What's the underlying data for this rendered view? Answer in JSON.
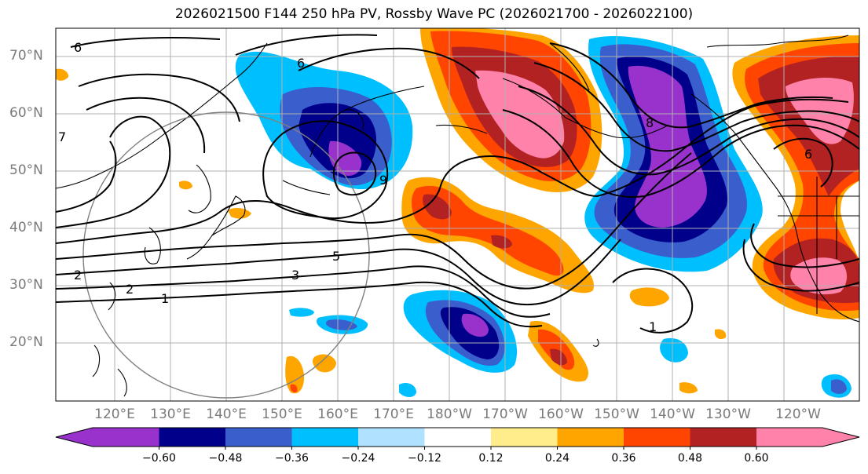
{
  "title": "2026021500 F144 250 hPa PV, Rossby Wave PC (2026021700 - 2026022100)",
  "map": {
    "lat_labels": [
      "70°N",
      "60°N",
      "50°N",
      "40°N",
      "30°N",
      "20°N"
    ],
    "lon_labels": [
      "120°E",
      "130°E",
      "140°E",
      "150°E",
      "160°E",
      "170°E",
      "180°W",
      "170°W",
      "160°W",
      "150°W",
      "140°W",
      "130°W",
      "120°W"
    ],
    "contour_labels": [
      "6",
      "6",
      "7",
      "9",
      "5",
      "3",
      "2",
      "2",
      "1",
      "8",
      "1",
      "6"
    ]
  },
  "colorbar": {
    "tick_labels": [
      "−0.60",
      "−0.48",
      "−0.36",
      "−0.24",
      "−0.12",
      "0.12",
      "0.24",
      "0.36",
      "0.48",
      "0.60"
    ],
    "colors": [
      "#9932CC",
      "#00008B",
      "#3A5FCD",
      "#00BFFF",
      "#B0E2FF",
      "#FFFFFF",
      "#FFEC8B",
      "#FFA500",
      "#FF4500",
      "#B22222",
      "#FF82AB"
    ]
  }
}
